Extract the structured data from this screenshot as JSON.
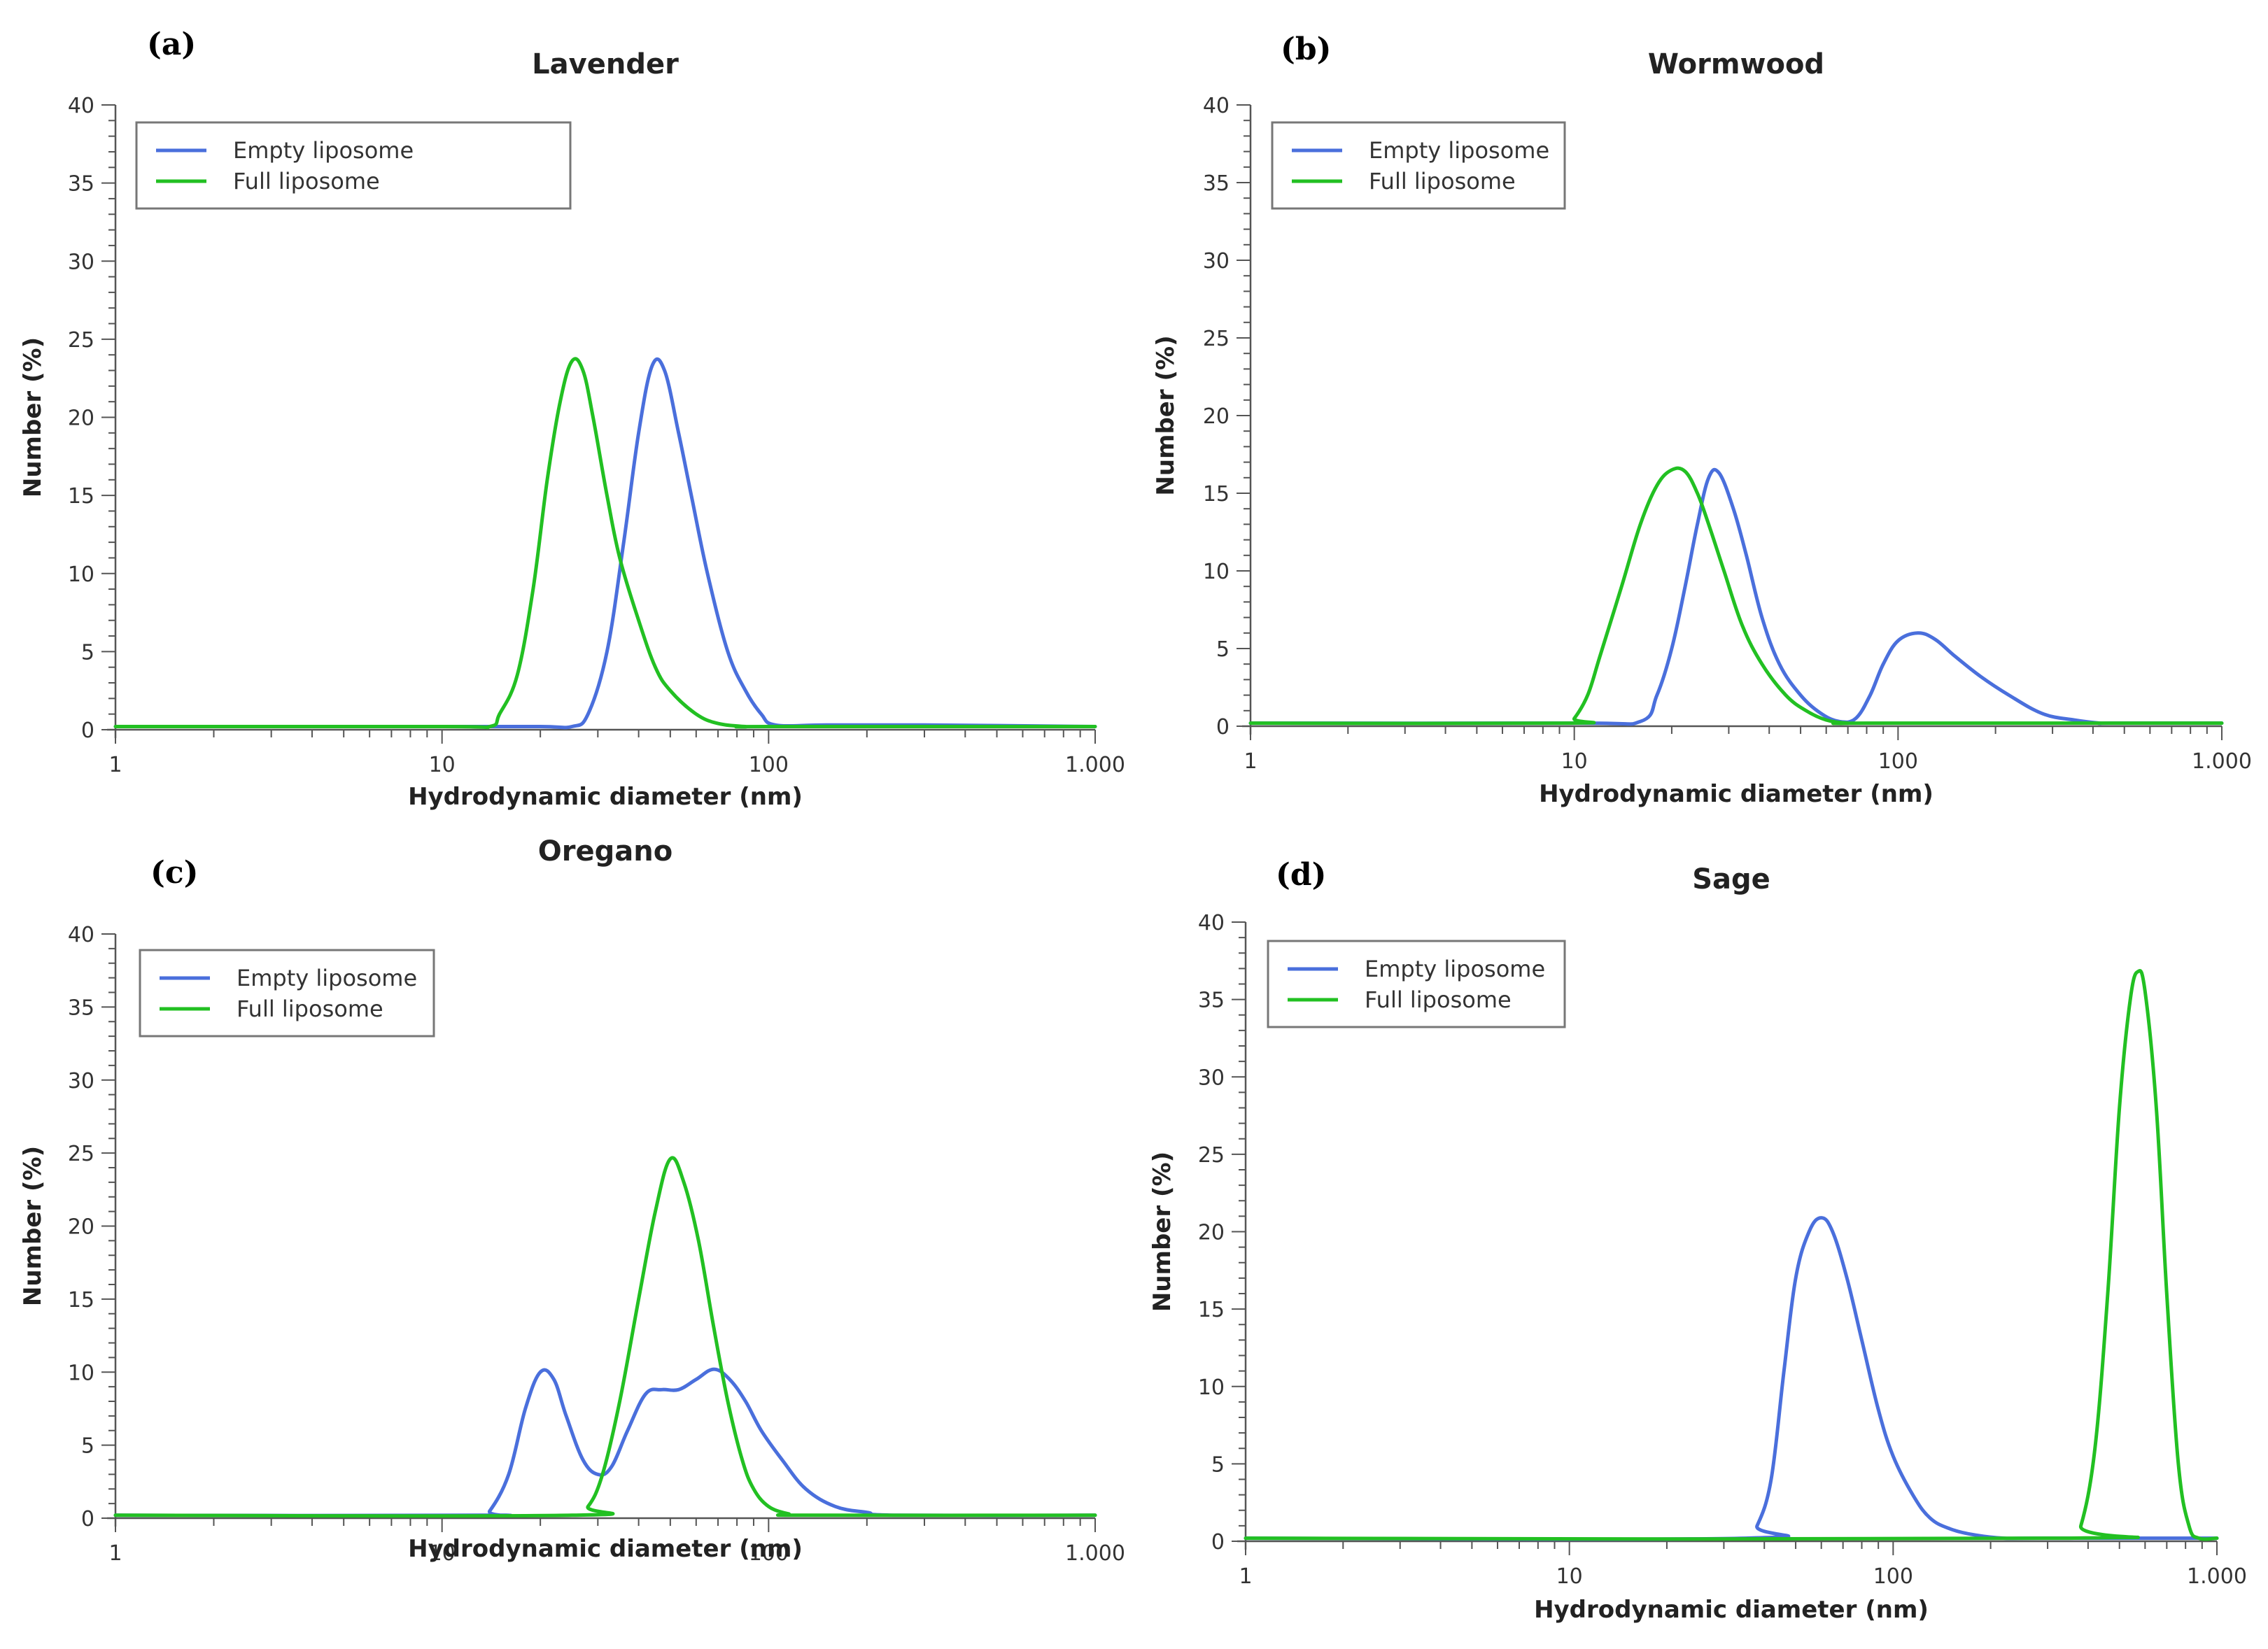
{
  "chart_data": [
    {
      "type": "line",
      "panel": "(a)",
      "title": "Lavender",
      "xlabel": "Hydrodynamic diameter (nm)",
      "ylabel": "Number (%)",
      "xscale": "log",
      "xlim": [
        1,
        1000
      ],
      "ylim": [
        0,
        40
      ],
      "xticks": [
        1,
        10,
        100,
        1000
      ],
      "xtick_labels": [
        "1",
        "10",
        "100",
        "1.000"
      ],
      "yticks": [
        0,
        5,
        10,
        15,
        20,
        25,
        30,
        35,
        40
      ],
      "ytick_labels": [
        "0",
        "5",
        "10",
        "15",
        "20",
        "25",
        "30",
        "35",
        "40"
      ],
      "legend": "top-left",
      "series": [
        {
          "name": "Empty liposome",
          "color": "#4a6fdc",
          "x": [
            1,
            10,
            20,
            25,
            28,
            32,
            36,
            40,
            44,
            48,
            53,
            58,
            65,
            75,
            85,
            95,
            105,
            150,
            300,
            1000
          ],
          "y": [
            0.2,
            0.2,
            0.2,
            0.2,
            1,
            5,
            12,
            19,
            23.3,
            23,
            19,
            15,
            10,
            5,
            2.5,
            1,
            0.3,
            0.3,
            0.3,
            0.2
          ]
        },
        {
          "name": "Full liposome",
          "color": "#22c022",
          "x": [
            1,
            10,
            14,
            15,
            17,
            19,
            21,
            23,
            25,
            27,
            29,
            32,
            35,
            40,
            45,
            50,
            60,
            70,
            85,
            100,
            1000
          ],
          "y": [
            0.2,
            0.2,
            0.2,
            1,
            3.5,
            9,
            16,
            21,
            23.6,
            23,
            20,
            15,
            11,
            7,
            4,
            2.5,
            1,
            0.4,
            0.2,
            0.2,
            0.2
          ]
        }
      ]
    },
    {
      "type": "line",
      "panel": "(b)",
      "title": "Wormwood",
      "xlabel": "Hydrodynamic diameter (nm)",
      "ylabel": "Number (%)",
      "xscale": "log",
      "xlim": [
        1,
        1000
      ],
      "ylim": [
        0,
        40
      ],
      "xticks": [
        1,
        10,
        100,
        1000
      ],
      "xtick_labels": [
        "1",
        "10",
        "100",
        "1.000"
      ],
      "yticks": [
        0,
        5,
        10,
        15,
        20,
        25,
        30,
        35,
        40
      ],
      "ytick_labels": [
        "0",
        "5",
        "10",
        "15",
        "20",
        "25",
        "30",
        "35",
        "40"
      ],
      "legend": "top-left",
      "series": [
        {
          "name": "Empty liposome",
          "color": "#4a6fdc",
          "x": [
            1,
            10,
            16,
            18,
            20,
            22,
            24,
            26,
            28,
            31,
            34,
            38,
            43,
            50,
            58,
            66,
            74,
            82,
            90,
            100,
            115,
            130,
            150,
            180,
            220,
            280,
            350,
            420,
            450,
            1000
          ],
          "y": [
            0.2,
            0.2,
            0.3,
            2,
            5,
            9,
            13,
            16,
            16.3,
            14,
            11,
            7,
            4,
            2,
            0.8,
            0.3,
            0.5,
            2,
            4,
            5.5,
            6,
            5.6,
            4.5,
            3.2,
            2,
            0.8,
            0.4,
            0.2,
            0.2,
            0.2
          ]
        },
        {
          "name": "Full liposome",
          "color": "#22c022",
          "x": [
            1,
            9.5,
            10,
            11,
            12,
            14,
            16,
            18,
            20,
            22,
            24,
            26,
            29,
            33,
            38,
            45,
            52,
            60,
            70,
            80,
            1000
          ],
          "y": [
            0.2,
            0.2,
            0.5,
            2,
            4.5,
            9,
            13,
            15.5,
            16.5,
            16.4,
            15,
            13,
            10,
            6.5,
            4,
            2,
            1,
            0.4,
            0.2,
            0.2,
            0.2
          ]
        }
      ]
    },
    {
      "type": "line",
      "panel": "(c)",
      "title": "Oregano",
      "xlabel": "Hydrodynamic diameter (nm)",
      "ylabel": "Number (%)",
      "xscale": "log",
      "xlim": [
        1,
        1000
      ],
      "ylim": [
        0,
        40
      ],
      "xticks": [
        1,
        10,
        100,
        1000
      ],
      "xtick_labels": [
        "1",
        "10",
        "100",
        "1.000"
      ],
      "yticks": [
        0,
        5,
        10,
        15,
        20,
        25,
        30,
        35,
        40
      ],
      "ytick_labels": [
        "0",
        "5",
        "10",
        "15",
        "20",
        "25",
        "30",
        "35",
        "40"
      ],
      "legend": "top-left",
      "series": [
        {
          "name": "Empty liposome",
          "color": "#4a6fdc",
          "x": [
            1,
            13,
            14,
            16,
            18,
            20,
            22,
            24,
            27,
            30,
            33,
            37,
            42,
            47,
            53,
            60,
            68,
            76,
            85,
            95,
            110,
            130,
            160,
            200,
            250,
            1000
          ],
          "y": [
            0.2,
            0.2,
            0.5,
            3,
            7.5,
            10,
            9.5,
            7,
            4,
            3,
            3.5,
            6,
            8.5,
            8.8,
            8.8,
            9.5,
            10.2,
            9.5,
            8,
            6,
            4,
            2,
            0.8,
            0.4,
            0.2,
            0.2
          ]
        },
        {
          "name": "Full liposome",
          "color": "#22c022",
          "x": [
            1,
            25,
            28,
            31,
            35,
            40,
            45,
            50,
            55,
            61,
            68,
            75,
            83,
            90,
            100,
            115,
            130,
            1000
          ],
          "y": [
            0.2,
            0.2,
            0.8,
            3,
            8,
            15,
            21,
            24.6,
            23,
            19,
            13,
            8,
            4,
            2,
            0.8,
            0.3,
            0.2,
            0.2
          ]
        }
      ]
    },
    {
      "type": "line",
      "panel": "(d)",
      "title": "Sage",
      "xlabel": "Hydrodynamic diameter (nm)",
      "ylabel": "Number (%)",
      "xscale": "log",
      "xlim": [
        1,
        1000
      ],
      "ylim": [
        0,
        40
      ],
      "xticks": [
        1,
        10,
        100,
        1000
      ],
      "xtick_labels": [
        "1",
        "10",
        "100",
        "1.000"
      ],
      "yticks": [
        0,
        5,
        10,
        15,
        20,
        25,
        30,
        35,
        40
      ],
      "ytick_labels": [
        "0",
        "5",
        "10",
        "15",
        "20",
        "25",
        "30",
        "35",
        "40"
      ],
      "legend": "top-left",
      "series": [
        {
          "name": "Empty liposome",
          "color": "#4a6fdc",
          "x": [
            1,
            35,
            38,
            42,
            46,
            50,
            55,
            60,
            65,
            72,
            80,
            90,
            100,
            115,
            130,
            150,
            180,
            220,
            280,
            1000
          ],
          "y": [
            0.2,
            0.2,
            1,
            4,
            11,
            17,
            20,
            20.9,
            20,
            17,
            13,
            8.5,
            5.5,
            3,
            1.5,
            0.8,
            0.4,
            0.2,
            0.2,
            0.2
          ]
        },
        {
          "name": "Full liposome",
          "color": "#22c022",
          "x": [
            1,
            350,
            380,
            420,
            460,
            500,
            540,
            570,
            600,
            650,
            700,
            760,
            820,
            880,
            1000
          ],
          "y": [
            0.2,
            0.2,
            1,
            6,
            16,
            28,
            35,
            36.8,
            35.5,
            28,
            16,
            5,
            1,
            0.2,
            0.2
          ]
        }
      ]
    }
  ]
}
